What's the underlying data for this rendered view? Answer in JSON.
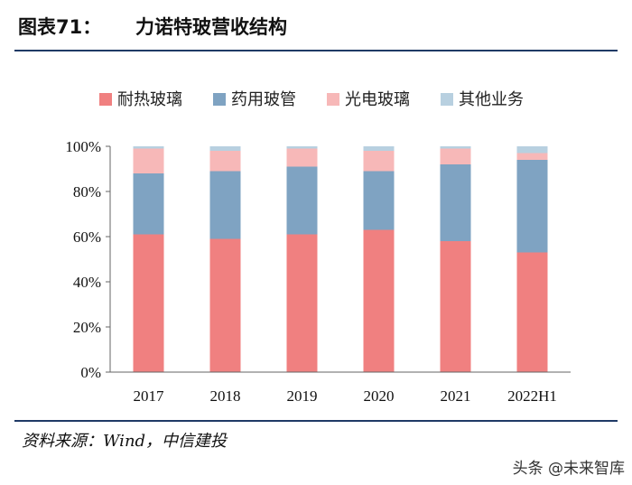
{
  "header": {
    "figure_number": "图表71：",
    "title": "力诺特玻营收结构"
  },
  "footer": {
    "source": "资料来源：Wind，中信建投",
    "watermark": "头条 @未来智库"
  },
  "colors": {
    "rule": "#1f3a66",
    "series": [
      "#f08080",
      "#7fa3c2",
      "#f7b8b8",
      "#b8d0e0"
    ]
  },
  "chart_data": {
    "type": "bar",
    "stacked": true,
    "title": "力诺特玻营收结构",
    "categories": [
      "2017",
      "2018",
      "2019",
      "2020",
      "2021",
      "2022H1"
    ],
    "series": [
      {
        "name": "耐热玻璃",
        "values": [
          61,
          59,
          61,
          63,
          58,
          53
        ]
      },
      {
        "name": "药用玻管",
        "values": [
          27,
          30,
          30,
          26,
          34,
          41
        ]
      },
      {
        "name": "光电玻璃",
        "values": [
          11,
          9,
          8,
          9,
          7,
          3
        ]
      },
      {
        "name": "其他业务",
        "values": [
          1,
          2,
          1,
          2,
          1,
          3
        ]
      }
    ],
    "ylim": [
      0,
      100
    ],
    "yticks": [
      "0%",
      "20%",
      "40%",
      "60%",
      "80%",
      "100%"
    ],
    "ytick_values": [
      0,
      20,
      40,
      60,
      80,
      100
    ],
    "xlabel": "",
    "ylabel": "",
    "legend_position": "top",
    "grid": false
  }
}
